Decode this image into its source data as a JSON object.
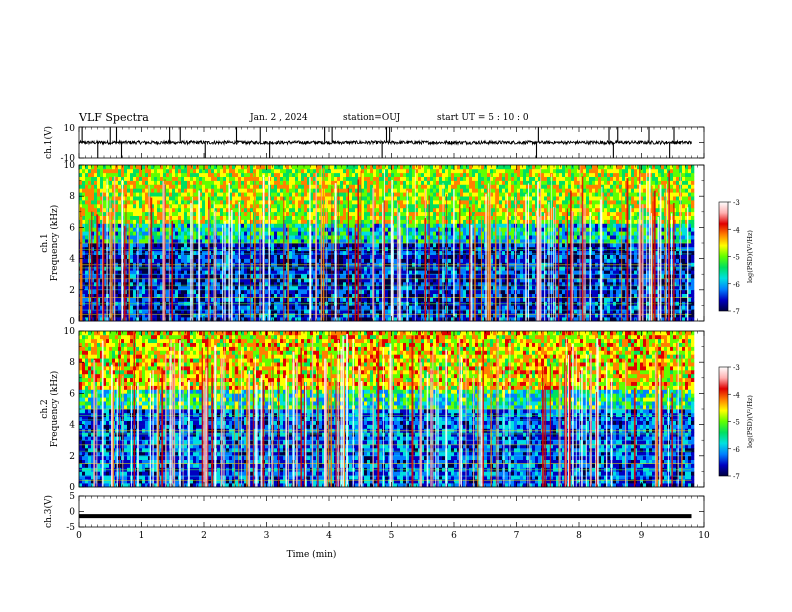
{
  "header": {
    "title": "VLF Spectra",
    "date": "Jan. 2 , 2024",
    "station": "station=OUJ",
    "start": "start UT = 5 : 10 : 0"
  },
  "colorbar_colors": [
    "#ffffff",
    "#ffb0b0",
    "#e00000",
    "#ff8000",
    "#ffff00",
    "#60ff00",
    "#00e060",
    "#00e0e0",
    "#0080ff",
    "#0000c0",
    "#000040"
  ],
  "chart_data": [
    {
      "type": "line",
      "panel": "ch1-waveform",
      "ylabel": "ch.1(V)",
      "ylim": [
        -10,
        10
      ],
      "yticks": [
        "10",
        "-10"
      ],
      "xlim": [
        0,
        10
      ],
      "baseline": 0,
      "series": [
        {
          "values_note": "noisy waveform near 0 V with impulsive spikes",
          "spike_times_min": [
            0.05,
            0.3,
            0.5,
            0.6,
            0.68,
            1.45,
            1.62,
            2.02,
            2.52,
            2.9,
            3.05,
            3.93,
            4.05,
            4.85,
            4.92,
            4.97,
            7.32,
            7.35,
            8.48,
            8.55,
            8.62,
            9.12,
            9.45,
            9.52
          ]
        }
      ]
    },
    {
      "type": "heatmap",
      "panel": "ch1-spectrogram",
      "ylabel_line1": "ch.1",
      "ylabel_line2": "Frequency (kHz)",
      "xlim": [
        0,
        9.8
      ],
      "ylim": [
        0,
        10
      ],
      "yticks": [
        "0",
        "2",
        "4",
        "6",
        "8",
        "10"
      ],
      "colorbar": {
        "label": "log(PSD)(V²/Hz)",
        "range": [
          -7,
          -3
        ],
        "ticks": [
          "-3",
          "-4",
          "-5",
          "-6",
          "-7"
        ]
      },
      "description_values": {
        "background_below_5kHz": -6.5,
        "band_above_6kHz": -4.8,
        "sferic_columns": -3.5
      }
    },
    {
      "type": "heatmap",
      "panel": "ch2-spectrogram",
      "ylabel_line1": "ch.2",
      "ylabel_line2": "Frequency (kHz)",
      "xlim": [
        0,
        9.8
      ],
      "ylim": [
        0,
        10
      ],
      "yticks": [
        "0",
        "2",
        "4",
        "6",
        "8",
        "10"
      ],
      "colorbar": {
        "label": "log(PSD)(V²/Hz)",
        "range": [
          -7,
          -3
        ],
        "ticks": [
          "-3",
          "-4",
          "-5",
          "-6",
          "-7"
        ]
      },
      "description_values": {
        "background_below_5kHz": -6.3,
        "band_above_6kHz": -4.6,
        "sferic_columns": -3.4
      }
    },
    {
      "type": "line",
      "panel": "ch3-waveform",
      "ylabel": "ch.3(V)",
      "ylim": [
        -5,
        5
      ],
      "yticks": [
        "5",
        "0",
        "-5"
      ],
      "xlim": [
        0,
        10
      ],
      "series": [
        {
          "values": [
            -1.5,
            -1.5
          ],
          "x": [
            0,
            9.8
          ]
        }
      ]
    }
  ],
  "xaxis": {
    "label": "Time (min)",
    "ticks": [
      "0",
      "1",
      "2",
      "3",
      "4",
      "5",
      "6",
      "7",
      "8",
      "9",
      "10"
    ],
    "range": [
      0,
      10
    ]
  }
}
